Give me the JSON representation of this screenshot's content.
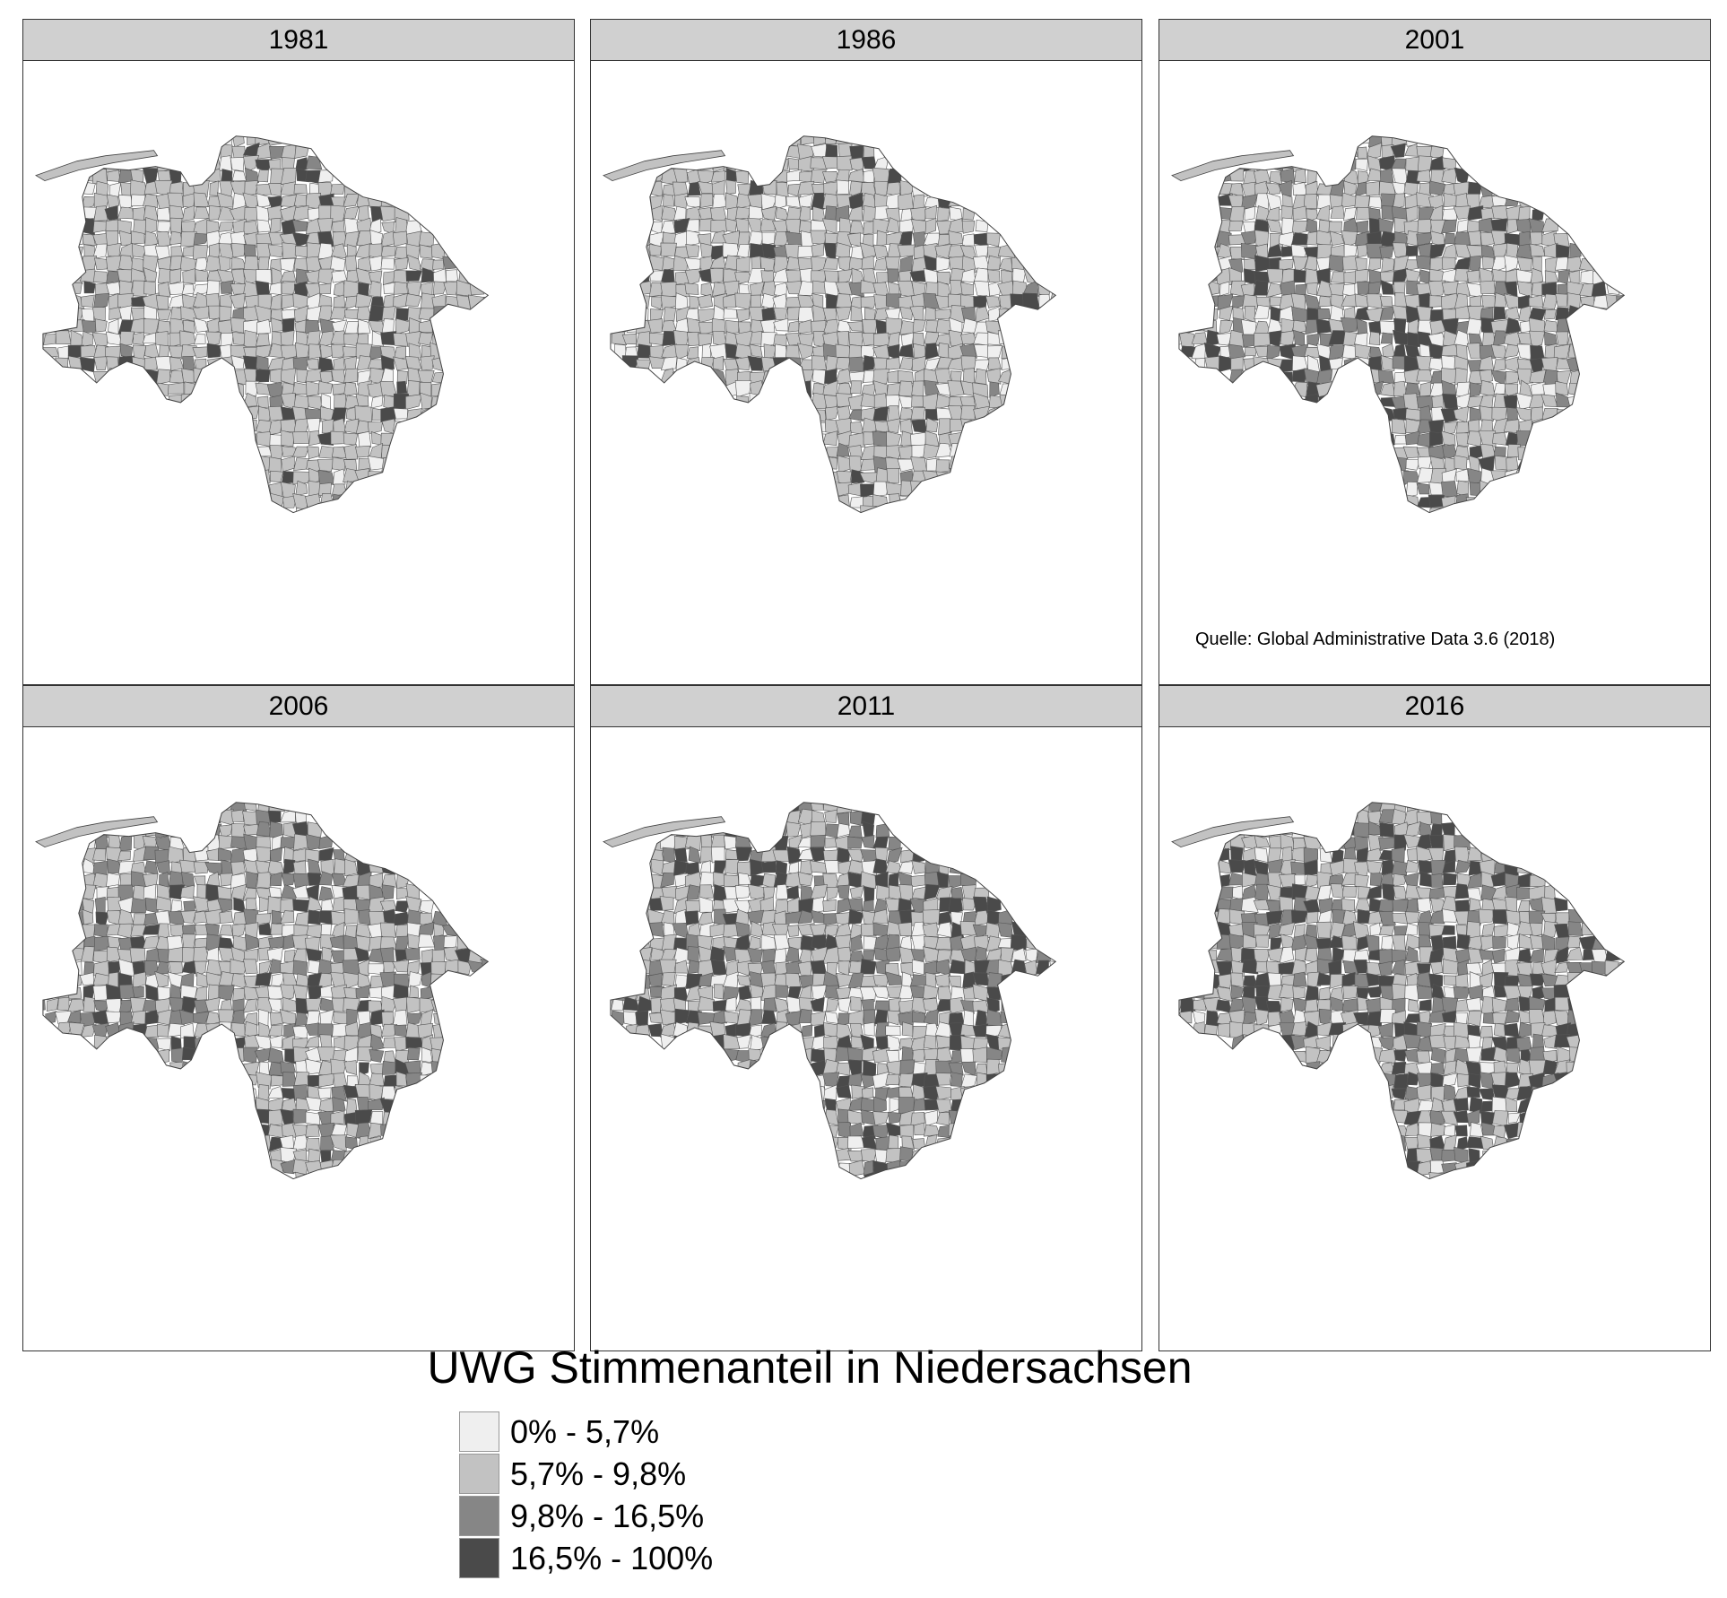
{
  "panels": [
    {
      "year": "1981",
      "dist": [
        14,
        76,
        3,
        7
      ]
    },
    {
      "year": "1986",
      "dist": [
        16,
        72,
        5,
        7
      ]
    },
    {
      "year": "2001",
      "dist": [
        14,
        50,
        20,
        16
      ]
    },
    {
      "year": "2006",
      "dist": [
        12,
        52,
        24,
        12
      ]
    },
    {
      "year": "2011",
      "dist": [
        12,
        46,
        24,
        18
      ]
    },
    {
      "year": "2016",
      "dist": [
        8,
        48,
        22,
        22
      ]
    }
  ],
  "source_note": "Quelle: Global Administrative Data 3.6 (2018)",
  "legend": {
    "title": "UWG Stimmenanteil in Niedersachsen",
    "items": [
      {
        "label": "0% - 5,7%",
        "color": "#efefef"
      },
      {
        "label": "5,7% - 9,8%",
        "color": "#c2c2c2"
      },
      {
        "label": "9,8% - 16,5%",
        "color": "#868686"
      },
      {
        "label": "16,5% - 100%",
        "color": "#4a4a4a"
      }
    ]
  },
  "colors": {
    "border": "#333333",
    "strip": "#d0d0d0",
    "district_line": "#555555"
  }
}
